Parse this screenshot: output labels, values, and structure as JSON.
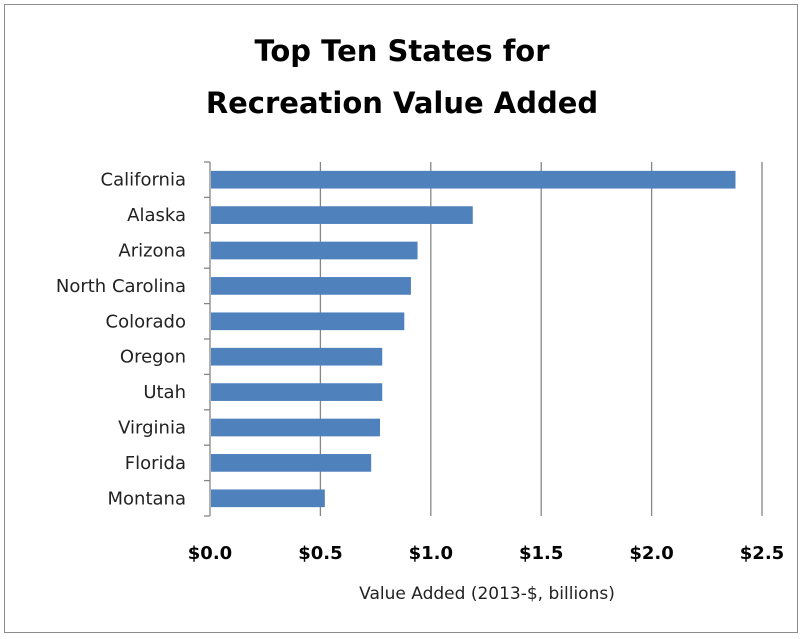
{
  "chart_data": {
    "type": "bar",
    "orientation": "horizontal",
    "title": "Top Ten States for Recreation Value Added",
    "title_lines": [
      "Top Ten States for",
      "Recreation Value Added"
    ],
    "xlabel": "Value Added (2013-$, billions)",
    "ylabel": "",
    "categories": [
      "California",
      "Alaska",
      "Arizona",
      "North Carolina",
      "Colorado",
      "Oregon",
      "Utah",
      "Virginia",
      "Florida",
      "Montana"
    ],
    "values": [
      2.38,
      1.19,
      0.94,
      0.91,
      0.88,
      0.78,
      0.78,
      0.77,
      0.73,
      0.52
    ],
    "xlim": [
      0,
      2.5
    ],
    "xticks": [
      0,
      0.5,
      1.0,
      1.5,
      2.0,
      2.5
    ],
    "xtick_labels": [
      "$0.0",
      "$0.5",
      "$1.0",
      "$1.5",
      "$2.0",
      "$2.5"
    ],
    "grid": "vertical",
    "legend": "none",
    "bar_color": "#4f81bd",
    "grid_color": "#868686"
  }
}
